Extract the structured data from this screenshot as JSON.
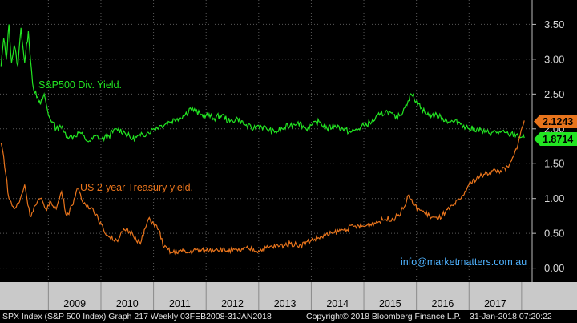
{
  "chart_data": {
    "type": "line",
    "y_axis": {
      "ticks": [
        "0.00",
        "0.50",
        "1.00",
        "1.50",
        "2.00",
        "2.50",
        "3.00",
        "3.50"
      ],
      "min": -0.2,
      "max": 3.85,
      "position": "right"
    },
    "x_axis": {
      "ticks": [
        "2009",
        "2010",
        "2011",
        "2012",
        "2013",
        "2014",
        "2015",
        "2016",
        "2017"
      ]
    },
    "grid": true,
    "series": [
      {
        "name": "S&P500 Div. Yield.",
        "color": "#22e522",
        "last_value": "1.8714",
        "x": [
          2008.1,
          2008.15,
          2008.2,
          2008.25,
          2008.3,
          2008.35,
          2008.42,
          2008.48,
          2008.55,
          2008.62,
          2008.7,
          2008.78,
          2008.85,
          2008.92,
          2009.0,
          2009.08,
          2009.15,
          2009.22,
          2009.3,
          2009.4,
          2009.5,
          2009.6,
          2009.7,
          2009.8,
          2009.9,
          2010.0,
          2010.15,
          2010.3,
          2010.45,
          2010.6,
          2010.75,
          2010.9,
          2011.0,
          2011.15,
          2011.3,
          2011.45,
          2011.6,
          2011.7,
          2011.8,
          2011.9,
          2012.0,
          2012.15,
          2012.3,
          2012.45,
          2012.6,
          2012.75,
          2012.9,
          2013.0,
          2013.15,
          2013.3,
          2013.45,
          2013.6,
          2013.75,
          2013.9,
          2014.0,
          2014.15,
          2014.3,
          2014.45,
          2014.6,
          2014.75,
          2014.9,
          2015.0,
          2015.15,
          2015.3,
          2015.45,
          2015.6,
          2015.7,
          2015.8,
          2015.9,
          2016.0,
          2016.1,
          2016.2,
          2016.35,
          2016.5,
          2016.65,
          2016.8,
          2016.9,
          2017.0,
          2017.15,
          2017.3,
          2017.45,
          2017.6,
          2017.75,
          2017.9,
          2018.0,
          2018.05
        ],
        "y": [
          2.9,
          3.3,
          3.0,
          3.5,
          2.95,
          3.2,
          2.9,
          3.45,
          2.95,
          3.4,
          2.65,
          2.45,
          2.35,
          2.5,
          2.2,
          2.1,
          2.0,
          2.05,
          1.95,
          1.88,
          1.9,
          1.95,
          1.85,
          1.82,
          1.9,
          1.85,
          1.9,
          2.0,
          1.95,
          1.85,
          1.9,
          1.95,
          2.0,
          2.05,
          2.1,
          2.15,
          2.2,
          2.3,
          2.25,
          2.2,
          2.2,
          2.15,
          2.2,
          2.1,
          2.15,
          2.05,
          2.0,
          2.05,
          2.0,
          1.95,
          2.0,
          2.05,
          2.1,
          2.0,
          2.05,
          2.1,
          2.0,
          2.05,
          2.0,
          1.95,
          2.0,
          2.05,
          2.1,
          2.2,
          2.25,
          2.15,
          2.2,
          2.35,
          2.5,
          2.4,
          2.3,
          2.2,
          2.2,
          2.15,
          2.1,
          2.1,
          2.05,
          2.0,
          2.0,
          1.95,
          1.95,
          1.95,
          1.92,
          1.92,
          1.88,
          1.87
        ]
      },
      {
        "name": "US 2-year Treasury yield.",
        "color": "#e8741c",
        "last_value": "2.1243",
        "x": [
          2008.1,
          2008.15,
          2008.25,
          2008.35,
          2008.45,
          2008.55,
          2008.65,
          2008.75,
          2008.85,
          2008.95,
          2009.05,
          2009.15,
          2009.25,
          2009.35,
          2009.45,
          2009.55,
          2009.65,
          2009.75,
          2009.85,
          2009.95,
          2010.05,
          2010.15,
          2010.3,
          2010.45,
          2010.6,
          2010.75,
          2010.9,
          2011.0,
          2011.1,
          2011.2,
          2011.35,
          2011.5,
          2011.65,
          2011.8,
          2012.0,
          2012.2,
          2012.4,
          2012.6,
          2012.8,
          2013.0,
          2013.2,
          2013.4,
          2013.6,
          2013.8,
          2014.0,
          2014.2,
          2014.4,
          2014.6,
          2014.8,
          2015.0,
          2015.2,
          2015.4,
          2015.6,
          2015.75,
          2015.85,
          2015.95,
          2016.05,
          2016.15,
          2016.25,
          2016.4,
          2016.55,
          2016.7,
          2016.85,
          2017.0,
          2017.15,
          2017.3,
          2017.45,
          2017.6,
          2017.75,
          2017.85,
          2017.95,
          2018.05
        ],
        "y": [
          1.8,
          1.6,
          1.0,
          0.85,
          0.95,
          1.2,
          0.75,
          0.9,
          1.0,
          0.85,
          0.95,
          0.85,
          1.1,
          0.75,
          0.9,
          1.15,
          0.95,
          0.9,
          0.85,
          0.7,
          0.55,
          0.45,
          0.4,
          0.55,
          0.5,
          0.35,
          0.7,
          0.65,
          0.55,
          0.3,
          0.22,
          0.25,
          0.22,
          0.26,
          0.25,
          0.28,
          0.25,
          0.25,
          0.28,
          0.25,
          0.3,
          0.32,
          0.35,
          0.33,
          0.4,
          0.45,
          0.5,
          0.55,
          0.6,
          0.6,
          0.65,
          0.7,
          0.72,
          0.85,
          1.05,
          0.9,
          0.85,
          0.8,
          0.75,
          0.7,
          0.8,
          0.9,
          1.0,
          1.2,
          1.3,
          1.35,
          1.4,
          1.4,
          1.45,
          1.6,
          1.85,
          2.12
        ]
      }
    ],
    "annotation": "info@marketmatters.com.au"
  },
  "footer": {
    "left": "SPX Index (S&P 500 Index) Graph 217  Weekly 03FEB2008-31JAN2018",
    "middle": "Copyright© 2018 Bloomberg Finance L.P.",
    "right": "31-Jan-2018 07:20:22"
  }
}
